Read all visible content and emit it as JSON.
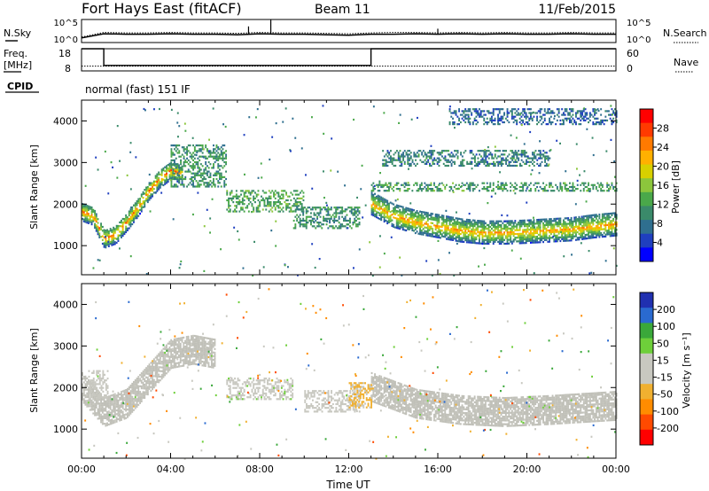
{
  "header": {
    "station": "Fort Hays East (fitACF)",
    "beam": "Beam 11",
    "date": "11/Feb/2015"
  },
  "side_labels": {
    "n_sky": "N.Sky",
    "n_search": "N.Search",
    "freq": "Freq.",
    "freq_unit": "[MHz]",
    "nave": "Nave",
    "cpid": "CPID",
    "mode": "normal (fast) 151 IF"
  },
  "colors": {
    "power_scale": [
      "#0000ff",
      "#1f3fbf",
      "#2f6f8f",
      "#3a8a6a",
      "#4aa84a",
      "#8cc63c",
      "#d8d000",
      "#ffb000",
      "#ff7a00",
      "#ff3a00",
      "#ff0000"
    ],
    "velocity_scale": [
      "#ff0000",
      "#ff4a00",
      "#ff8c00",
      "#f0b030",
      "#c8c8c0",
      "#c8c8c0",
      "#6ecf3a",
      "#3aa83a",
      "#2a6ad0",
      "#2030b0"
    ],
    "ground_scatter": "#c0c0b8"
  },
  "chart_data": [
    {
      "type": "line",
      "name": "noise",
      "ylabel": "N.Sky",
      "ylabel_right": "N.Search",
      "y_ticks": [
        "10^5",
        "10^0"
      ],
      "y_ticks_right": [
        "10^5",
        "10^0"
      ],
      "x": [
        0,
        1,
        2,
        3,
        4,
        5,
        6,
        7,
        8,
        9,
        10,
        11,
        12,
        13,
        14,
        15,
        16,
        17,
        18,
        19,
        20,
        21,
        22,
        23,
        24
      ],
      "series": [
        {
          "values": [
            1.0,
            1.9,
            1.8,
            1.8,
            1.9,
            1.8,
            1.8,
            1.7,
            1.9,
            1.8,
            1.8,
            1.7,
            1.6,
            1.8,
            1.8,
            1.9,
            1.8,
            1.9,
            1.8,
            1.9,
            1.8,
            1.8,
            1.9,
            1.8,
            1.8
          ]
        },
        {
          "values": [
            1.2,
            2.2,
            2.1,
            2.1,
            2.2,
            2.1,
            2.1,
            2.0,
            2.2,
            2.1,
            2.1,
            2.0,
            1.9,
            2.1,
            2.2,
            2.2,
            2.1,
            2.2,
            2.1,
            2.2,
            2.1,
            2.1,
            2.2,
            2.1,
            2.1
          ]
        }
      ]
    },
    {
      "type": "line",
      "name": "frequency",
      "ylabel": "Freq.",
      "ylabel_right": "Nave",
      "y_ticks": [
        "18",
        "8"
      ],
      "y_ticks_right": [
        "60",
        "0"
      ],
      "ylim": [
        8,
        18
      ],
      "ylim_right": [
        0,
        60
      ],
      "x": [
        0,
        1.0,
        1.0,
        13.0,
        13.0,
        24
      ],
      "freq_values": [
        18,
        18,
        10.5,
        10.5,
        18,
        18
      ],
      "nave_value": 13
    },
    {
      "type": "heatmap",
      "name": "power",
      "ylabel": "Slant Range [km]",
      "colorbar_label": "Power [dB]",
      "colorbar_ticks": [
        "28",
        "24",
        "20",
        "16",
        "12",
        "8",
        "4"
      ],
      "colorbar_range": [
        0,
        32
      ],
      "ylim": [
        300,
        4500
      ],
      "y_ticks": [
        1000,
        2000,
        3000,
        4000
      ],
      "x_ticks": [
        "00:00",
        "04:00",
        "08:00",
        "12:00",
        "16:00",
        "20:00",
        "00:00"
      ],
      "xlim": [
        0,
        24
      ],
      "echo_bands": [
        {
          "t": [
            0.0,
            0.5,
            1.0,
            1.5,
            2.0,
            2.5,
            3.0,
            3.5,
            4.0,
            4.5
          ],
          "r": [
            1800,
            1700,
            1150,
            1250,
            1550,
            1900,
            2300,
            2600,
            2800,
            2700
          ],
          "width": 450,
          "peak_db": 26
        },
        {
          "t": [
            13.0,
            14.0,
            15.0,
            16.0,
            17.0,
            18.0,
            19.0,
            20.0,
            21.0,
            22.0,
            23.0,
            24.0
          ],
          "r": [
            2000,
            1700,
            1550,
            1450,
            1350,
            1300,
            1300,
            1320,
            1350,
            1380,
            1450,
            1500
          ],
          "width": 550,
          "peak_db": 24
        }
      ],
      "scatter_patches": [
        {
          "t0": 4.0,
          "t1": 6.5,
          "r0": 2400,
          "r1": 3400,
          "db": 10
        },
        {
          "t0": 6.5,
          "t1": 10.0,
          "r0": 1800,
          "r1": 2300,
          "db": 12
        },
        {
          "t0": 9.5,
          "t1": 12.5,
          "r0": 1400,
          "r1": 1900,
          "db": 10
        },
        {
          "t0": 13.0,
          "t1": 24.0,
          "r0": 2300,
          "r1": 2500,
          "db": 11
        },
        {
          "t0": 13.5,
          "t1": 21.0,
          "r0": 2900,
          "r1": 3300,
          "db": 8
        },
        {
          "t0": 16.5,
          "t1": 24.0,
          "r0": 3900,
          "r1": 4300,
          "db": 6
        }
      ]
    },
    {
      "type": "heatmap",
      "name": "velocity",
      "ylabel": "Slant Range [km]",
      "colorbar_label": "Velocity [m s⁻¹]",
      "colorbar_ticks": [
        "200",
        "100",
        "50",
        "15",
        "-15",
        "-50",
        "-100",
        "-200"
      ],
      "colorbar_range": [
        -250,
        250
      ],
      "ylim": [
        300,
        4500
      ],
      "y_ticks": [
        1000,
        2000,
        3000,
        4000
      ],
      "x_ticks": [
        "00:00",
        "04:00",
        "08:00",
        "12:00",
        "16:00",
        "20:00",
        "00:00"
      ],
      "xlabel": "Time UT",
      "xlim": [
        0,
        24
      ],
      "ground_scatter_bands": [
        {
          "t": [
            0.0,
            1.0,
            2.0,
            3.0,
            4.0,
            5.0,
            6.0
          ],
          "r": [
            2000,
            1400,
            1600,
            2200,
            2800,
            2900,
            2800
          ],
          "width": 700
        },
        {
          "t": [
            13.0,
            15.0,
            17.0,
            19.0,
            21.0,
            24.0
          ],
          "r": [
            2000,
            1600,
            1450,
            1400,
            1450,
            1550
          ],
          "width": 700
        }
      ],
      "velocity_patches": [
        {
          "t0": 6.5,
          "t1": 9.5,
          "r0": 1700,
          "r1": 2200,
          "v": 40
        },
        {
          "t0": 10.0,
          "t1": 12.5,
          "r0": 1400,
          "r1": 1900,
          "v": 30
        },
        {
          "t0": 12.0,
          "t1": 13.0,
          "r0": 1500,
          "r1": 2100,
          "v": -60
        },
        {
          "t0": 0.3,
          "t1": 1.2,
          "r0": 1700,
          "r1": 2400,
          "v": -30
        }
      ]
    }
  ]
}
